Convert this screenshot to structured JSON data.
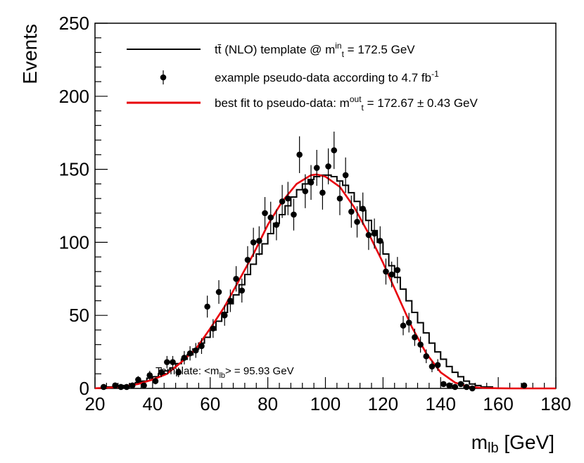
{
  "chart_data": {
    "type": "scatter",
    "xlabel": "m",
    "xlabel_sub": "lb",
    "xlabel_unit": "[GeV]",
    "ylabel": "Events",
    "xlim": [
      20,
      180
    ],
    "ylim": [
      0,
      250
    ],
    "xticks": [
      20,
      40,
      60,
      80,
      100,
      120,
      140,
      160,
      180
    ],
    "yticks": [
      0,
      50,
      100,
      150,
      200,
      250
    ],
    "grid": false,
    "legend_position": "top",
    "legend": [
      {
        "kind": "line",
        "color": "#000000",
        "parts": [
          [
            "t",
            "n"
          ],
          [
            "t̄",
            "n"
          ],
          [
            " (NLO) template @ m",
            "n"
          ],
          [
            "in",
            "sup"
          ],
          [
            "t",
            "sub"
          ],
          [
            " = 172.5 GeV",
            "n"
          ]
        ]
      },
      {
        "kind": "marker",
        "color": "#000000",
        "parts": [
          [
            "example pseudo-data according to 4.7 fb",
            "n"
          ],
          [
            "-1",
            "sup"
          ]
        ]
      },
      {
        "kind": "line",
        "color": "#e8000b",
        "parts": [
          [
            "best fit to pseudo-data: m",
            "n"
          ],
          [
            "out",
            "sup"
          ],
          [
            "t",
            "sub"
          ],
          [
            " = 172.67 ± 0.43 GeV",
            "n"
          ]
        ]
      }
    ],
    "annotation": {
      "parts": [
        [
          "Template: <m",
          "n"
        ],
        [
          "lb",
          "sub"
        ],
        [
          "> = 95.93 GeV",
          "n"
        ]
      ],
      "x": 41,
      "y": 12
    },
    "series": [
      {
        "name": "tt̄ (NLO) template @ m_t^in = 172.5 GeV",
        "type": "step",
        "color": "#000000",
        "bin_width": 2,
        "bin_edges_start": 20,
        "values": [
          0,
          0,
          1,
          1,
          2,
          2,
          3,
          4,
          5,
          7,
          8,
          10,
          12,
          14,
          17,
          20,
          23,
          27,
          31,
          35,
          40,
          46,
          52,
          58,
          64,
          71,
          78,
          85,
          92,
          99,
          106,
          113,
          119,
          125,
          131,
          136,
          140,
          143,
          145,
          146,
          146,
          145,
          142,
          139,
          134,
          128,
          122,
          115,
          108,
          100,
          92,
          84,
          76,
          68,
          60,
          52,
          45,
          38,
          31,
          25,
          20,
          15,
          11,
          8,
          5,
          3,
          2,
          1,
          1,
          0,
          0,
          0,
          0,
          0,
          0,
          0,
          0,
          0,
          0,
          0
        ]
      },
      {
        "name": "best fit to pseudo-data",
        "type": "line",
        "color": "#e8000b",
        "x": [
          20,
          25,
          30,
          35,
          40,
          45,
          50,
          55,
          60,
          65,
          70,
          75,
          80,
          85,
          90,
          95,
          97,
          100,
          105,
          110,
          115,
          120,
          125,
          130,
          135,
          140,
          145,
          150,
          155,
          160,
          165,
          170,
          175,
          180
        ],
        "y": [
          0.1,
          0.5,
          1.2,
          3,
          6,
          10,
          18,
          27,
          41,
          56,
          74,
          92,
          112,
          128,
          140,
          146,
          146.5,
          145,
          138,
          124,
          106,
          86,
          64,
          42,
          24,
          11,
          4,
          1,
          0.3,
          0.1,
          0,
          0,
          0,
          0
        ]
      },
      {
        "name": "example pseudo-data according to 4.7 fb-1",
        "type": "points",
        "color": "#000000",
        "x": [
          23,
          27,
          29,
          31,
          33,
          35,
          37,
          39,
          41,
          43,
          45,
          47,
          49,
          51,
          53,
          55,
          57,
          59,
          61,
          63,
          65,
          67,
          69,
          71,
          73,
          75,
          77,
          79,
          81,
          83,
          85,
          87,
          89,
          91,
          93,
          95,
          97,
          99,
          101,
          103,
          105,
          107,
          109,
          111,
          113,
          115,
          117,
          119,
          121,
          123,
          125,
          127,
          129,
          131,
          133,
          135,
          137,
          139,
          141,
          143,
          145,
          147,
          149,
          151,
          169
        ],
        "y": [
          1,
          2,
          1,
          1,
          2,
          6,
          2,
          9,
          5,
          11,
          18,
          18,
          11,
          21,
          24,
          26,
          29,
          56,
          41,
          66,
          50,
          60,
          75,
          67,
          88,
          100,
          101,
          120,
          117,
          112,
          128,
          130,
          119,
          160,
          135,
          141,
          151,
          134,
          152,
          163,
          130,
          146,
          121,
          114,
          123,
          105,
          106,
          101,
          80,
          78,
          81,
          43,
          45,
          35,
          30,
          22,
          15,
          16,
          3,
          2,
          1,
          3,
          1,
          0,
          2
        ],
        "yerr": [
          1,
          1.4,
          1,
          1,
          1.4,
          2.4,
          1.4,
          3,
          2.2,
          3.3,
          4.2,
          4.2,
          3.3,
          4.6,
          4.9,
          5.1,
          5.4,
          7.5,
          6.4,
          8.1,
          7.1,
          7.7,
          8.7,
          8.2,
          9.4,
          10,
          10,
          11,
          10.8,
          10.6,
          11.3,
          11.4,
          10.9,
          12.6,
          11.6,
          11.9,
          12.3,
          11.6,
          12.3,
          12.8,
          11.4,
          12.1,
          11,
          10.7,
          11.1,
          10.2,
          10.3,
          10,
          8.9,
          8.8,
          9,
          6.6,
          6.7,
          5.9,
          5.5,
          4.7,
          3.9,
          4,
          1.7,
          1.4,
          1,
          1.7,
          1,
          0,
          1.4
        ]
      }
    ]
  }
}
